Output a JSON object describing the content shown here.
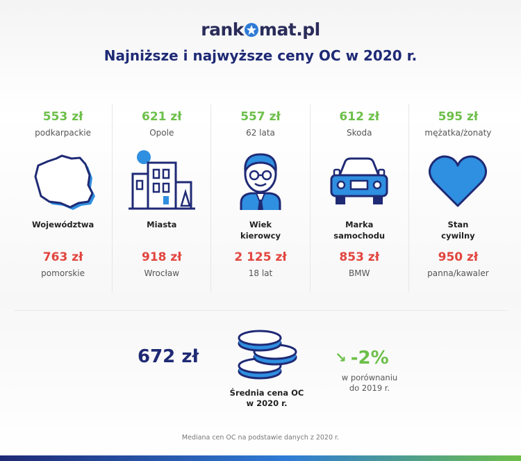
{
  "header": {
    "logo_before": "rank",
    "logo_after": "mat.pl",
    "title": "Najniższe i najwyższe ceny OC w 2020 r."
  },
  "columns": [
    {
      "low_price": "553 zł",
      "low_label": "podkarpackie",
      "icon": "poland-map-icon",
      "category_line1": "Województwa",
      "category_line2": "",
      "high_price": "763 zł",
      "high_label": "pomorskie"
    },
    {
      "low_price": "621 zł",
      "low_label": "Opole",
      "icon": "city-buildings-icon",
      "category_line1": "Miasta",
      "category_line2": "",
      "high_price": "918 zł",
      "high_label": "Wrocław"
    },
    {
      "low_price": "557 zł",
      "low_label": "62 lata",
      "icon": "driver-face-icon",
      "category_line1": "Wiek",
      "category_line2": "kierowcy",
      "high_price": "2 125 zł",
      "high_label": "18 lat"
    },
    {
      "low_price": "612 zł",
      "low_label": "Skoda",
      "icon": "car-front-icon",
      "category_line1": "Marka",
      "category_line2": "samochodu",
      "high_price": "853 zł",
      "high_label": "BMW"
    },
    {
      "low_price": "595 zł",
      "low_label": "mężatka/żonaty",
      "icon": "heart-icon",
      "category_line1": "Stan",
      "category_line2": "cywilny",
      "high_price": "950 zł",
      "high_label": "panna/kawaler"
    }
  ],
  "summary": {
    "average_price": "672 zł",
    "average_label_line1": "Średnia cena OC",
    "average_label_line2": "w  2020 r.",
    "change_value": "-2%",
    "change_label_line1": "w porównaniu",
    "change_label_line2": "do 2019 r."
  },
  "footnote": "Mediana cen OC na podstawie danych z 2020 r.",
  "colors": {
    "navy": "#1f2a75",
    "green": "#6dbf4a",
    "red": "#e2453e",
    "blue": "#2f7bd6"
  }
}
